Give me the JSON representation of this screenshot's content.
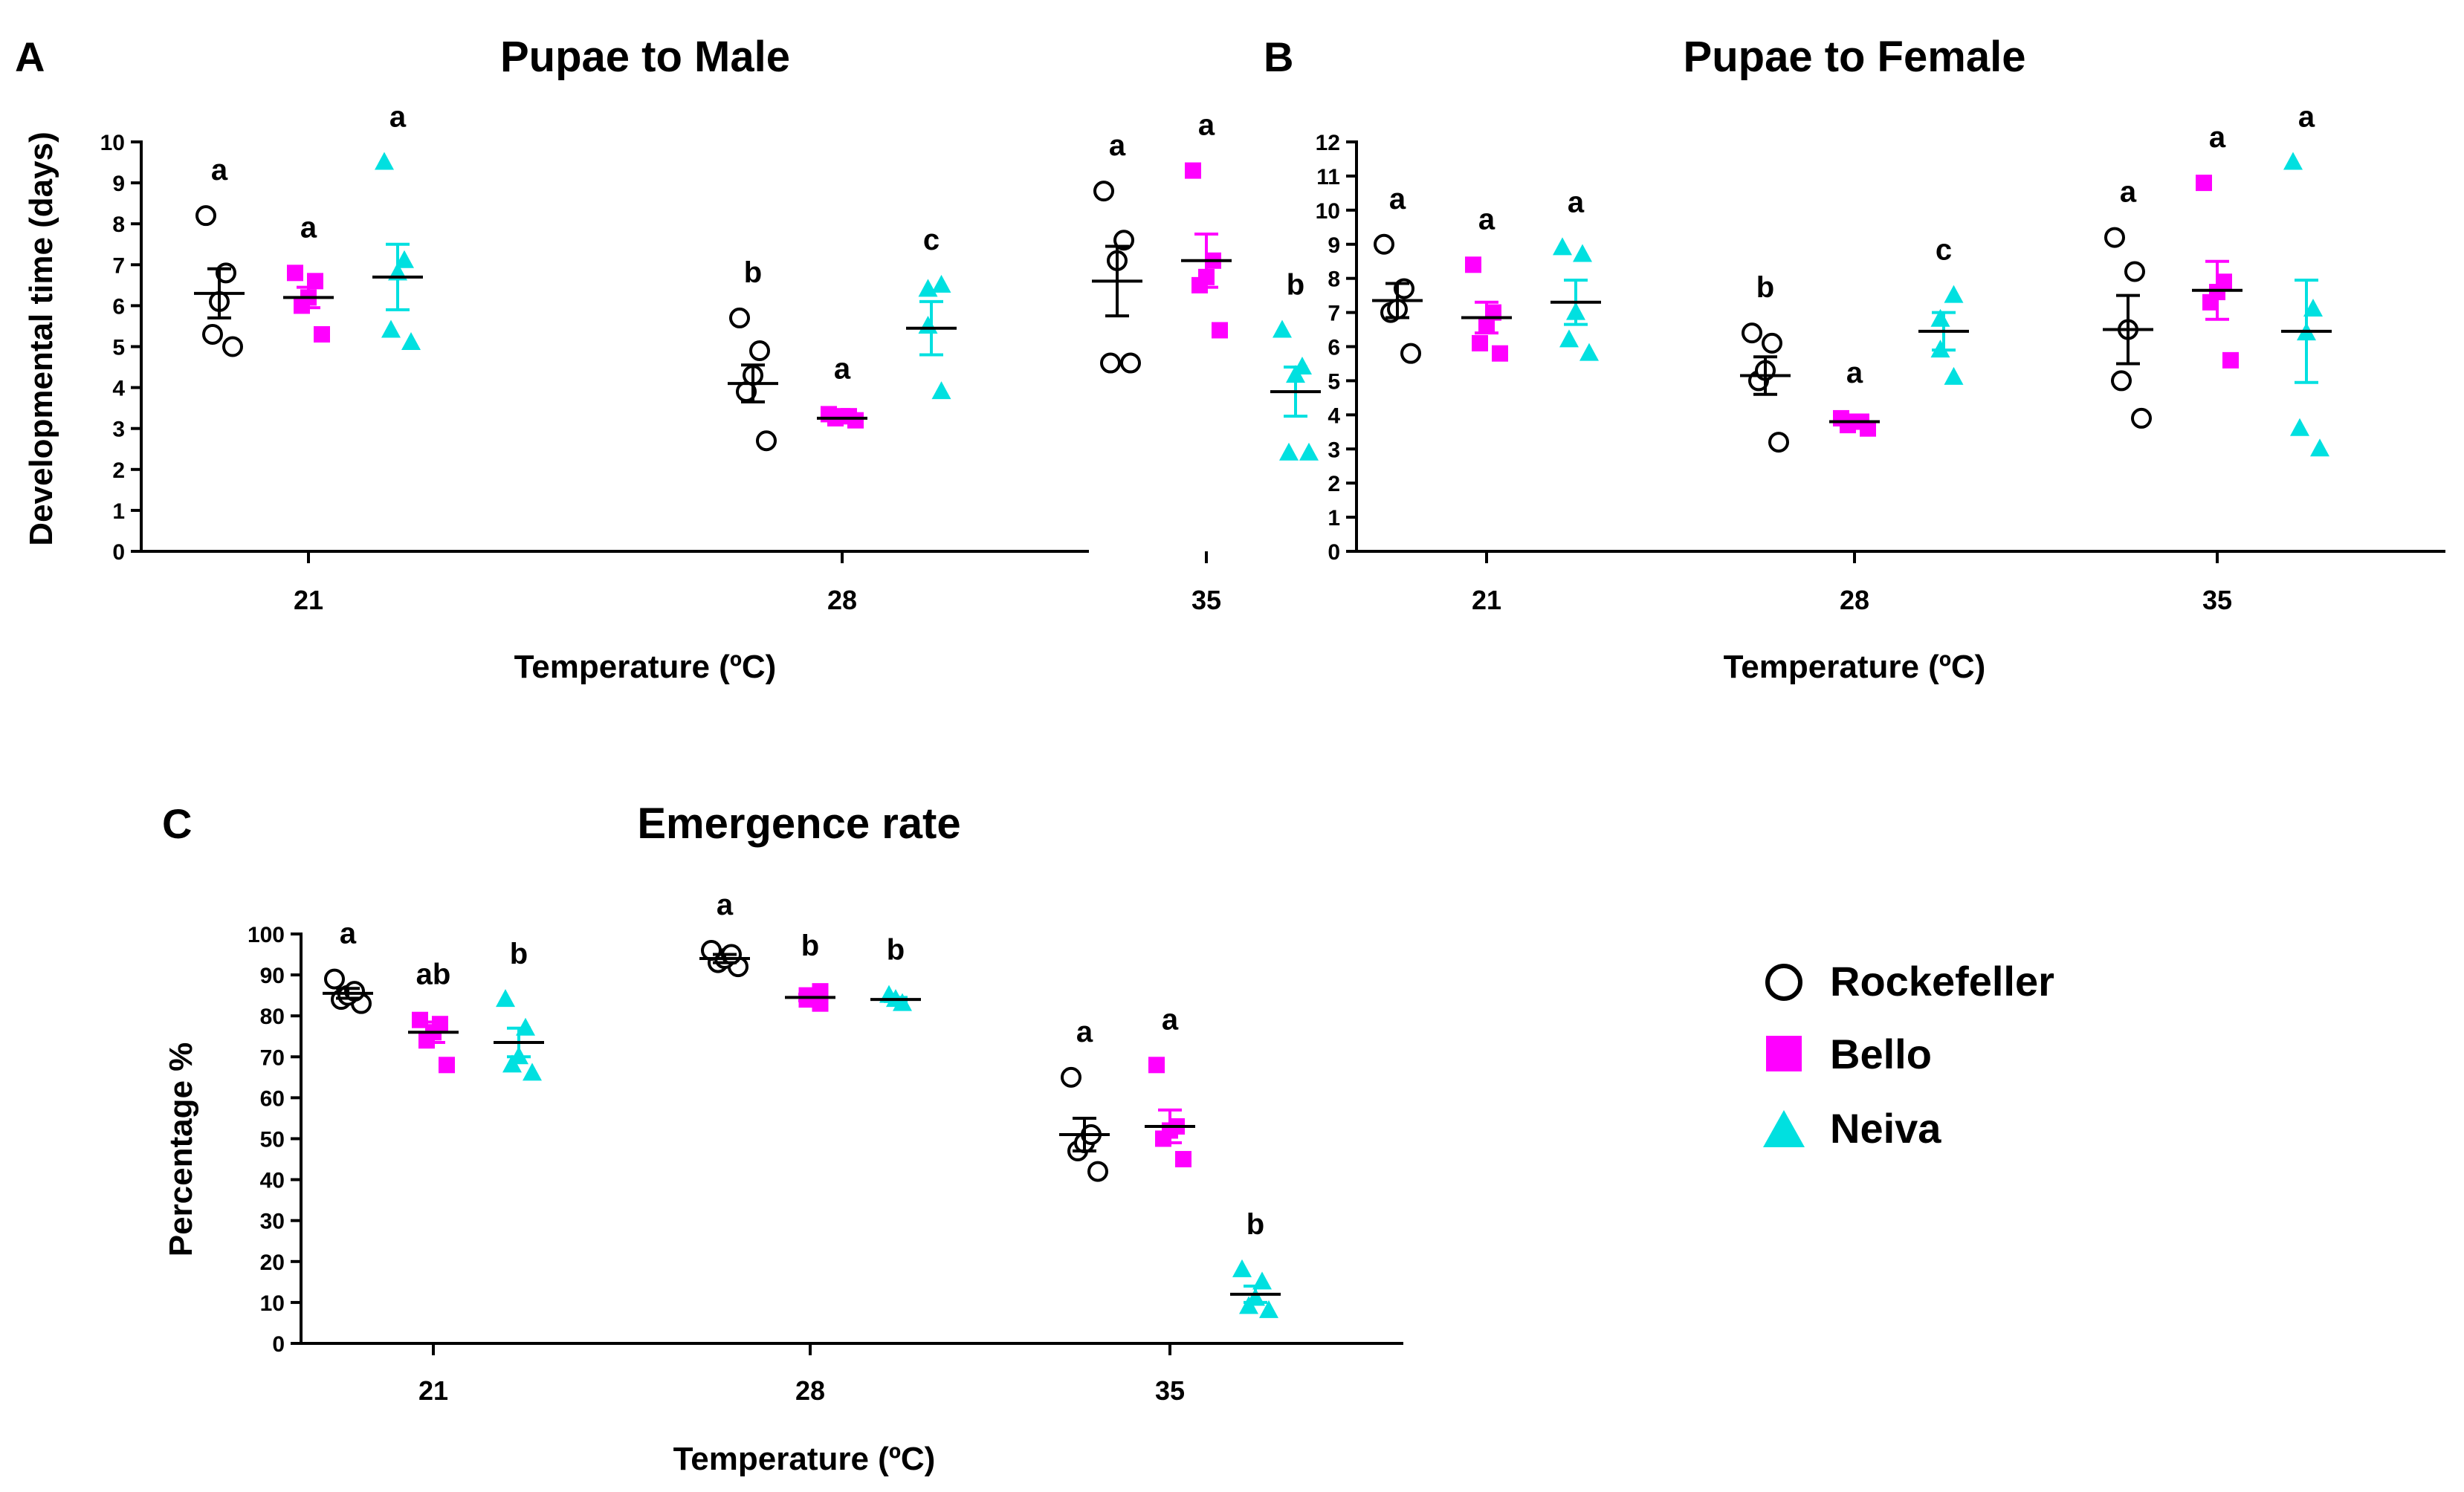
{
  "legend": [
    {
      "name": "Rockefeller",
      "marker": "circle-open",
      "color": "#000000"
    },
    {
      "name": "Bello",
      "marker": "square",
      "color": "#ff00ff"
    },
    {
      "name": "Neiva",
      "marker": "triangle",
      "color": "#00e0e0"
    }
  ],
  "chart_data": [
    {
      "panel": "A",
      "type": "scatter",
      "title": "Pupae to Male",
      "xlabel": "Temperature (ºC)",
      "ylabel": "Developmental time (days)",
      "categories": [
        "21",
        "28",
        "35"
      ],
      "ylim": [
        0,
        10
      ],
      "yticks": [
        0,
        1,
        2,
        3,
        4,
        5,
        6,
        7,
        8,
        9,
        10
      ],
      "series": [
        {
          "name": "Rockefeller",
          "points": [
            [
              5.0,
              5.3,
              6.1,
              6.8,
              8.2
            ],
            [
              2.7,
              3.9,
              4.3,
              4.9,
              5.7
            ],
            [
              4.6,
              4.6,
              7.1,
              7.6,
              8.8
            ]
          ],
          "mean": [
            6.3,
            4.1,
            6.6
          ],
          "sem": [
            0.6,
            0.45,
            0.85
          ],
          "letters": [
            "a",
            "b",
            "a"
          ]
        },
        {
          "name": "Bello",
          "points": [
            [
              5.3,
              6.0,
              6.2,
              6.6,
              6.8
            ],
            [
              3.2,
              3.25,
              3.3,
              3.3,
              3.35
            ],
            [
              5.4,
              6.5,
              6.7,
              7.1,
              9.3
            ]
          ],
          "mean": [
            6.2,
            3.25,
            7.1
          ],
          "sem": [
            0.25,
            0.05,
            0.65
          ],
          "letters": [
            "a",
            "a",
            "a"
          ]
        },
        {
          "name": "Neiva",
          "points": [
            [
              5.1,
              5.4,
              6.8,
              7.1,
              9.5
            ],
            [
              3.9,
              5.5,
              6.4,
              6.5
            ],
            [
              2.4,
              2.4,
              4.3,
              4.5,
              5.4
            ]
          ],
          "mean": [
            6.7,
            5.45,
            3.9
          ],
          "sem": [
            0.8,
            0.65,
            0.6
          ],
          "letters": [
            "a",
            "c",
            "b"
          ]
        }
      ]
    },
    {
      "panel": "B",
      "type": "scatter",
      "title": "Pupae to Female",
      "xlabel": "Temperature (ºC)",
      "ylabel": "",
      "categories": [
        "21",
        "28",
        "35"
      ],
      "ylim": [
        0,
        12
      ],
      "yticks": [
        0,
        1,
        2,
        3,
        4,
        5,
        6,
        7,
        8,
        9,
        10,
        11,
        12
      ],
      "series": [
        {
          "name": "Rockefeller",
          "points": [
            [
              5.8,
              7.0,
              7.1,
              7.7,
              9.0
            ],
            [
              3.2,
              5.0,
              5.3,
              6.1,
              6.4
            ],
            [
              3.9,
              5.0,
              6.5,
              8.2,
              9.2
            ]
          ],
          "mean": [
            7.35,
            5.15,
            6.5
          ],
          "sem": [
            0.5,
            0.55,
            1.0
          ],
          "letters": [
            "a",
            "b",
            "a"
          ]
        },
        {
          "name": "Bello",
          "points": [
            [
              5.8,
              6.1,
              6.6,
              7.0,
              8.4
            ],
            [
              3.6,
              3.7,
              3.8,
              3.8,
              3.9
            ],
            [
              5.6,
              7.3,
              7.6,
              7.9,
              10.8
            ]
          ],
          "mean": [
            6.85,
            3.8,
            7.65
          ],
          "sem": [
            0.45,
            0.05,
            0.85
          ],
          "letters": [
            "a",
            "a",
            "a"
          ]
        },
        {
          "name": "Neiva",
          "points": [
            [
              5.8,
              6.2,
              7.0,
              8.7,
              8.9
            ],
            [
              5.1,
              5.9,
              6.8,
              7.5
            ],
            [
              3.0,
              3.6,
              6.4,
              7.1,
              11.4
            ]
          ],
          "mean": [
            7.3,
            6.45,
            6.45
          ],
          "sem": [
            0.65,
            0.55,
            1.5
          ],
          "letters": [
            "a",
            "c",
            "a"
          ]
        }
      ]
    },
    {
      "panel": "C",
      "type": "scatter",
      "title": "Emergence rate",
      "xlabel": "Temperature (ºC)",
      "ylabel": "Percentage %",
      "categories": [
        "21",
        "28",
        "35"
      ],
      "ylim": [
        0,
        100
      ],
      "yticks": [
        0,
        10,
        20,
        30,
        40,
        50,
        60,
        70,
        80,
        90,
        100
      ],
      "series": [
        {
          "name": "Rockefeller",
          "points": [
            [
              83,
              84,
              85,
              86,
              89
            ],
            [
              92,
              93,
              94,
              95,
              96
            ],
            [
              42,
              47,
              49,
              51,
              65
            ]
          ],
          "mean": [
            85.5,
            94,
            51
          ],
          "sem": [
            1.2,
            1.0,
            4.0
          ],
          "letters": [
            "a",
            "a",
            "a"
          ]
        },
        {
          "name": "Bello",
          "points": [
            [
              68,
              74,
              76,
              78,
              79
            ],
            [
              83,
              84,
              85,
              86
            ],
            [
              45,
              50,
              52,
              53,
              68
            ]
          ],
          "mean": [
            76,
            84.5,
            53
          ],
          "sem": [
            2.5,
            0.8,
            4.0
          ],
          "letters": [
            "ab",
            "b",
            "a"
          ]
        },
        {
          "name": "Neiva",
          "points": [
            [
              66,
              68,
              70,
              77,
              84
            ],
            [
              83,
              84,
              85
            ],
            [
              8,
              9,
              11,
              15,
              18
            ]
          ],
          "mean": [
            73.5,
            84,
            12
          ],
          "sem": [
            3.5,
            0.5,
            2.0
          ],
          "letters": [
            "b",
            "b",
            "b"
          ]
        }
      ]
    }
  ]
}
